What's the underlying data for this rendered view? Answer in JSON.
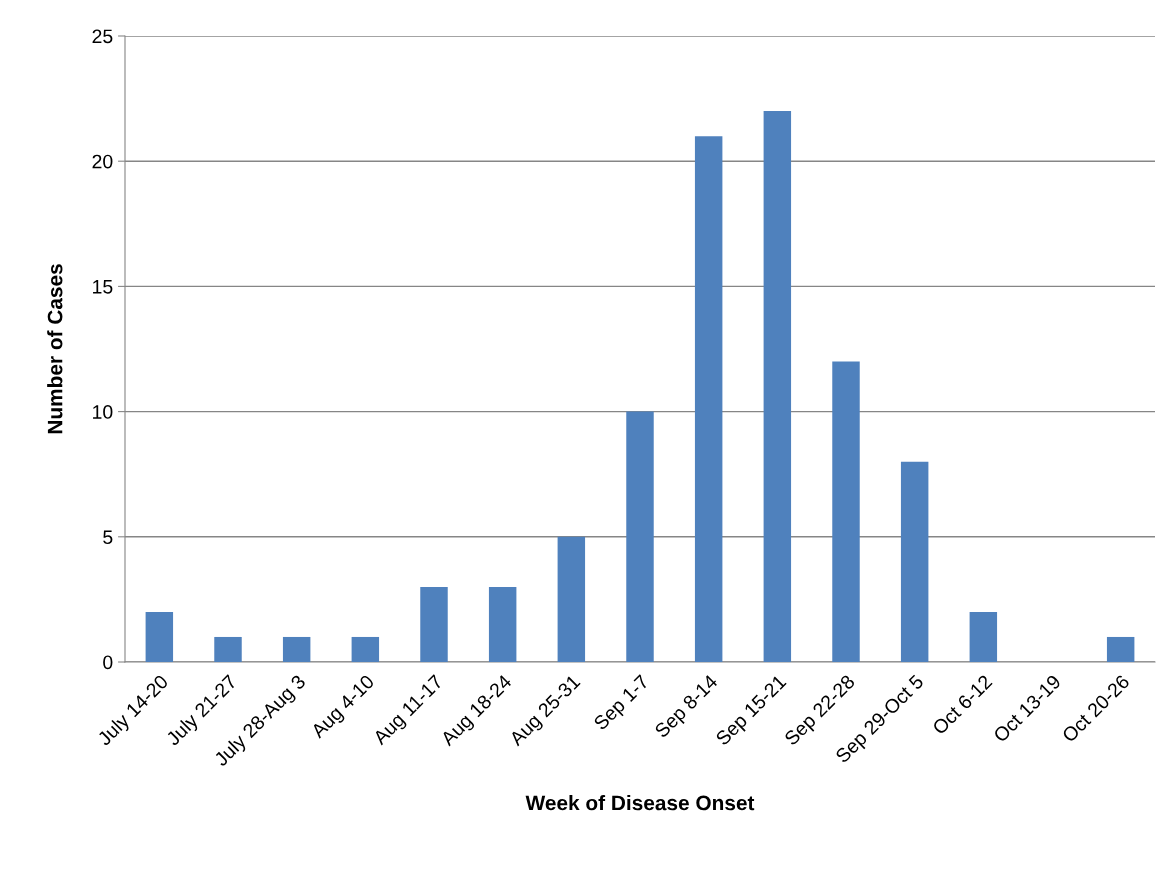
{
  "chart_data": {
    "type": "bar",
    "xlabel": "Week of Disease Onset",
    "ylabel": "Number of Cases",
    "categories": [
      "July 14-20",
      "July 21-27",
      "July 28-Aug 3",
      "Aug 4-10",
      "Aug 11-17",
      "Aug 18-24",
      "Aug 25-31",
      "Sep 1-7",
      "Sep 8-14",
      "Sep 15-21",
      "Sep 22-28",
      "Sep 29-Oct 5",
      "Oct 6-12",
      "Oct 13-19",
      "Oct 20-26"
    ],
    "values": [
      2,
      1,
      1,
      1,
      3,
      3,
      5,
      10,
      21,
      22,
      12,
      8,
      2,
      0,
      1
    ],
    "color": "#4f81bd",
    "ylim": [
      0,
      25
    ],
    "yticks": [
      0,
      5,
      10,
      15,
      20,
      25
    ],
    "grid": "y"
  }
}
